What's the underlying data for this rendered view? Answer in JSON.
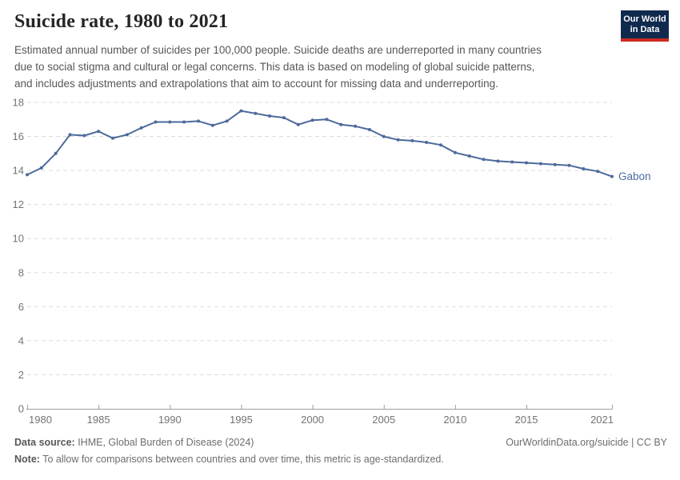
{
  "header": {
    "title": "Suicide rate, 1980 to 2021",
    "subtitle_lines": [
      "Estimated annual number of suicides per 100,000 people. Suicide deaths are underreported in many countries",
      "due to social stigma and cultural or legal concerns. This data is based on modeling of global suicide patterns,",
      "and includes adjustments and extrapolations that aim to account for missing data and underreporting."
    ]
  },
  "logo": {
    "line1": "Our World",
    "line2": "in Data"
  },
  "chart_data": {
    "type": "line",
    "title": "Suicide rate, 1980 to 2021",
    "xlabel": "",
    "ylabel": "",
    "xlim": [
      1980,
      2021
    ],
    "ylim": [
      0,
      18
    ],
    "x_ticks": [
      1980,
      1985,
      1990,
      1995,
      2000,
      2005,
      2010,
      2015,
      2021
    ],
    "y_ticks": [
      0,
      2,
      4,
      6,
      8,
      10,
      12,
      14,
      16,
      18
    ],
    "grid": "horizontal-dashed",
    "legend_position": "end-of-line-label",
    "x": [
      1980,
      1981,
      1982,
      1983,
      1984,
      1985,
      1986,
      1987,
      1988,
      1989,
      1990,
      1991,
      1992,
      1993,
      1994,
      1995,
      1996,
      1997,
      1998,
      1999,
      2000,
      2001,
      2002,
      2003,
      2004,
      2005,
      2006,
      2007,
      2008,
      2009,
      2010,
      2011,
      2012,
      2013,
      2014,
      2015,
      2016,
      2017,
      2018,
      2019,
      2020,
      2021
    ],
    "series": [
      {
        "name": "Gabon",
        "color": "#4c6a9c",
        "values": [
          13.75,
          14.15,
          15.0,
          16.1,
          16.05,
          16.3,
          15.9,
          16.1,
          16.5,
          16.85,
          16.85,
          16.85,
          16.9,
          16.65,
          16.9,
          17.5,
          17.35,
          17.2,
          17.1,
          16.7,
          16.95,
          17.0,
          16.7,
          16.6,
          16.4,
          16.0,
          15.8,
          15.75,
          15.65,
          15.5,
          15.05,
          14.85,
          14.65,
          14.55,
          14.5,
          14.45,
          14.4,
          14.35,
          14.3,
          14.1,
          13.95,
          13.65
        ]
      }
    ]
  },
  "colors": {
    "accent_line": "#4c6a9c",
    "gridline": "#dcdcdc",
    "axis": "#9e9e9e",
    "tick_label": "#737373",
    "logo_bg": "#102a4e",
    "logo_stripe": "#cc2a22"
  },
  "footer": {
    "datasource_label": "Data source:",
    "datasource_value": " IHME, Global Burden of Disease (2024)",
    "note_label": "Note:",
    "note_value": " To allow for comparisons between countries and over time, this metric is age-standardized.",
    "link": "OurWorldinData.org/suicide | CC BY"
  }
}
